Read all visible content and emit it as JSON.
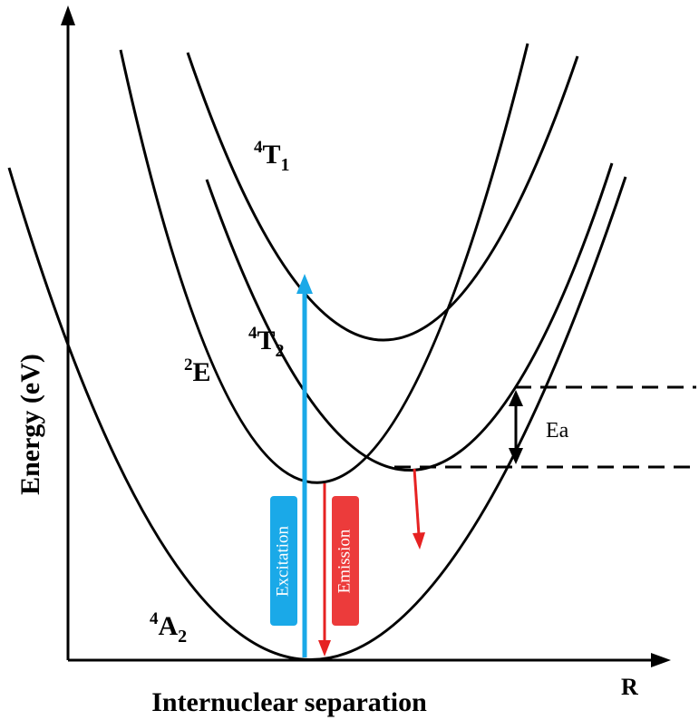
{
  "axes": {
    "x_title": "Internuclear separation",
    "x_end_label": "R",
    "y_title": "Energy (eV)"
  },
  "states": {
    "a2": {
      "sup": "4",
      "main": "A",
      "sub": "2"
    },
    "e": {
      "sup": "2",
      "main": "E"
    },
    "t2": {
      "sup": "4",
      "main": "T",
      "sub": "2"
    },
    "t1": {
      "sup": "4",
      "main": "T",
      "sub": "1"
    }
  },
  "annotations": {
    "activation_energy": "Ea",
    "excitation": "Excitation",
    "emission": "Emission"
  },
  "colors": {
    "curve": "#000000",
    "excitation": "#1aa9e8",
    "emission": "#e62222",
    "emission_box": "#ec3b3b"
  }
}
